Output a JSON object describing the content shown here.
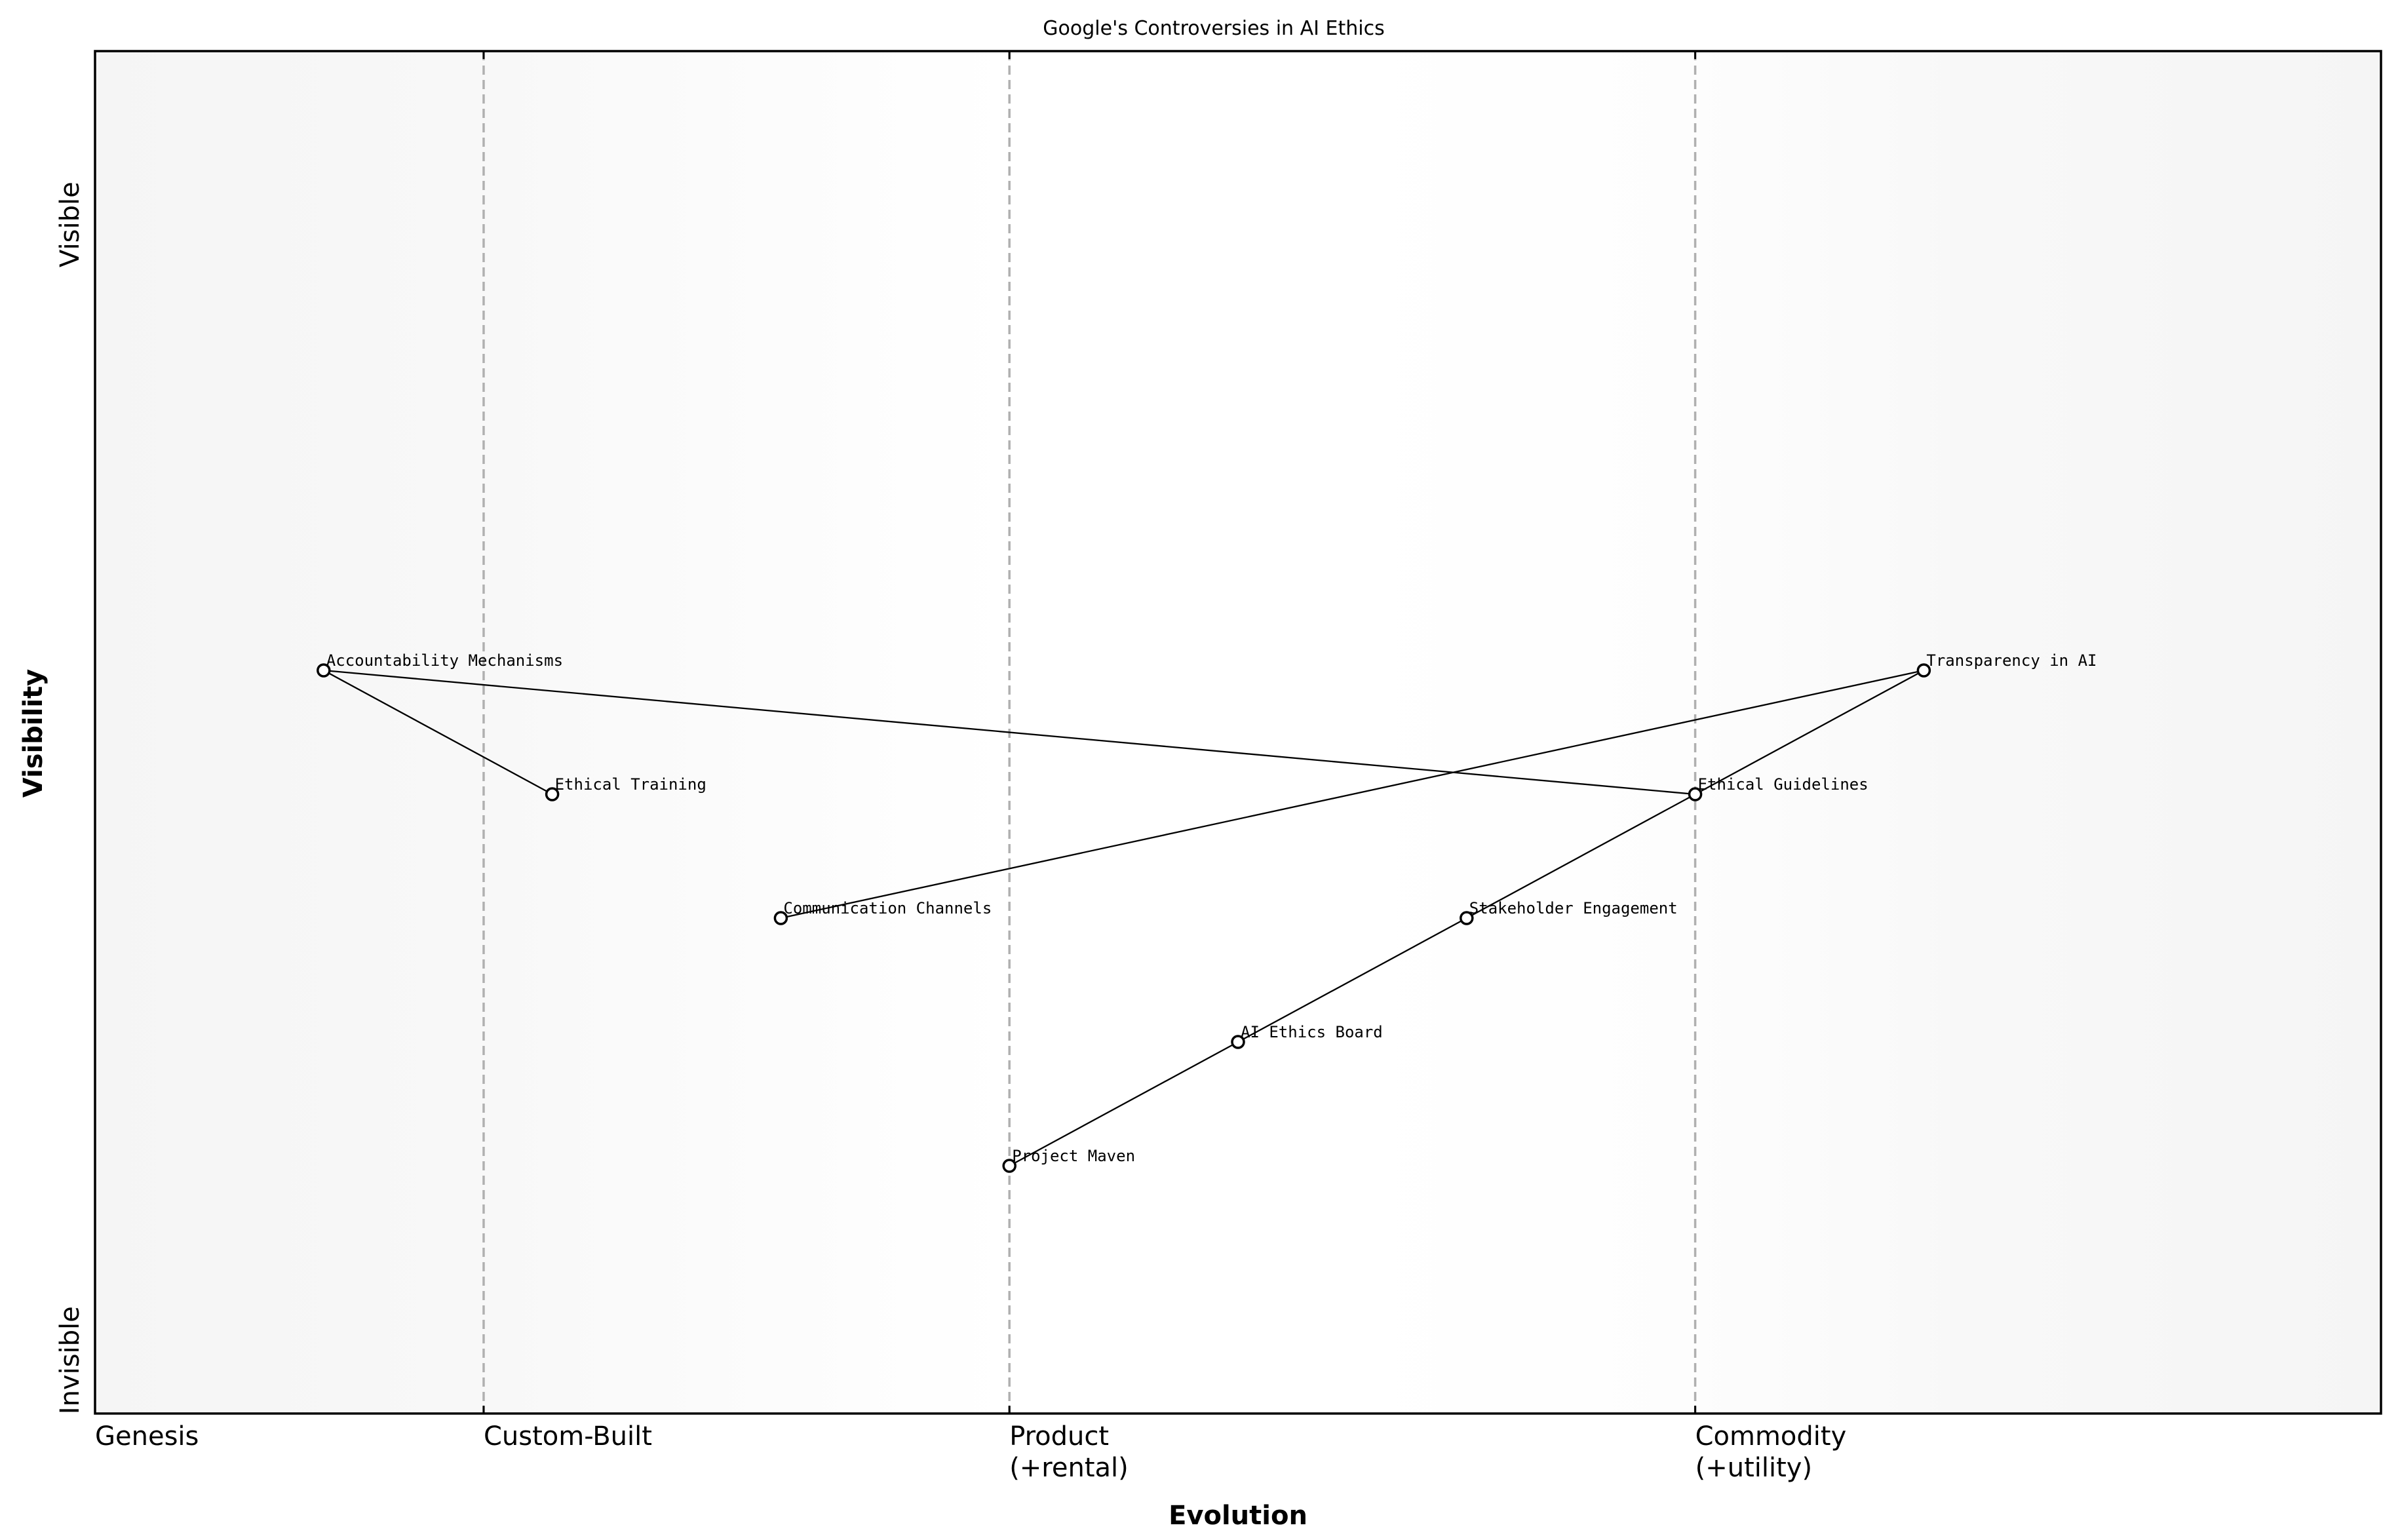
{
  "chart_data": {
    "type": "scatter",
    "subtype": "wardley-map",
    "title": "Google's Controversies in AI Ethics",
    "xlabel": "Evolution",
    "ylabel": "Visibility",
    "xlim": [
      0,
      1
    ],
    "ylim": [
      0,
      1.1
    ],
    "grid": false,
    "legend": null,
    "x_ticks": [
      {
        "value": 0.0,
        "label": "Genesis"
      },
      {
        "value": 0.17,
        "label": "Custom-Built"
      },
      {
        "value": 0.4,
        "label": "Product\n(+rental)"
      },
      {
        "value": 0.7,
        "label": "Commodity\n(+utility)"
      }
    ],
    "y_ticks": [
      {
        "value": 0.96,
        "label": "Visible"
      },
      {
        "value": 0.043,
        "label": "Invisible"
      }
    ],
    "stage_dividers": [
      0.17,
      0.4,
      0.7
    ],
    "nodes": [
      {
        "name": "Accountability Mechanisms",
        "x": 0.1,
        "y": 0.6
      },
      {
        "name": "Ethical Training",
        "x": 0.2,
        "y": 0.5
      },
      {
        "name": "Communication Channels",
        "x": 0.3,
        "y": 0.4
      },
      {
        "name": "Project Maven",
        "x": 0.4,
        "y": 0.2
      },
      {
        "name": "AI Ethics Board",
        "x": 0.5,
        "y": 0.3
      },
      {
        "name": "Stakeholder Engagement",
        "x": 0.6,
        "y": 0.4
      },
      {
        "name": "Ethical Guidelines",
        "x": 0.7,
        "y": 0.5
      },
      {
        "name": "Transparency in AI",
        "x": 0.8,
        "y": 0.6
      }
    ],
    "edges": [
      [
        "Accountability Mechanisms",
        "Ethical Training"
      ],
      [
        "Accountability Mechanisms",
        "Ethical Guidelines"
      ],
      [
        "Communication Channels",
        "Transparency in AI"
      ],
      [
        "Project Maven",
        "AI Ethics Board"
      ],
      [
        "AI Ethics Board",
        "Stakeholder Engagement"
      ],
      [
        "Stakeholder Engagement",
        "Ethical Guidelines"
      ],
      [
        "Ethical Guidelines",
        "Transparency in AI"
      ]
    ]
  },
  "colors": {
    "background": "#ffffff",
    "plot_bg_edge": "#f5f5f5",
    "plot_bg_mid": "#ffffff",
    "divider": "#b0b0b0",
    "line": "#000000",
    "node_fill": "#ffffff",
    "node_stroke": "#000000"
  }
}
